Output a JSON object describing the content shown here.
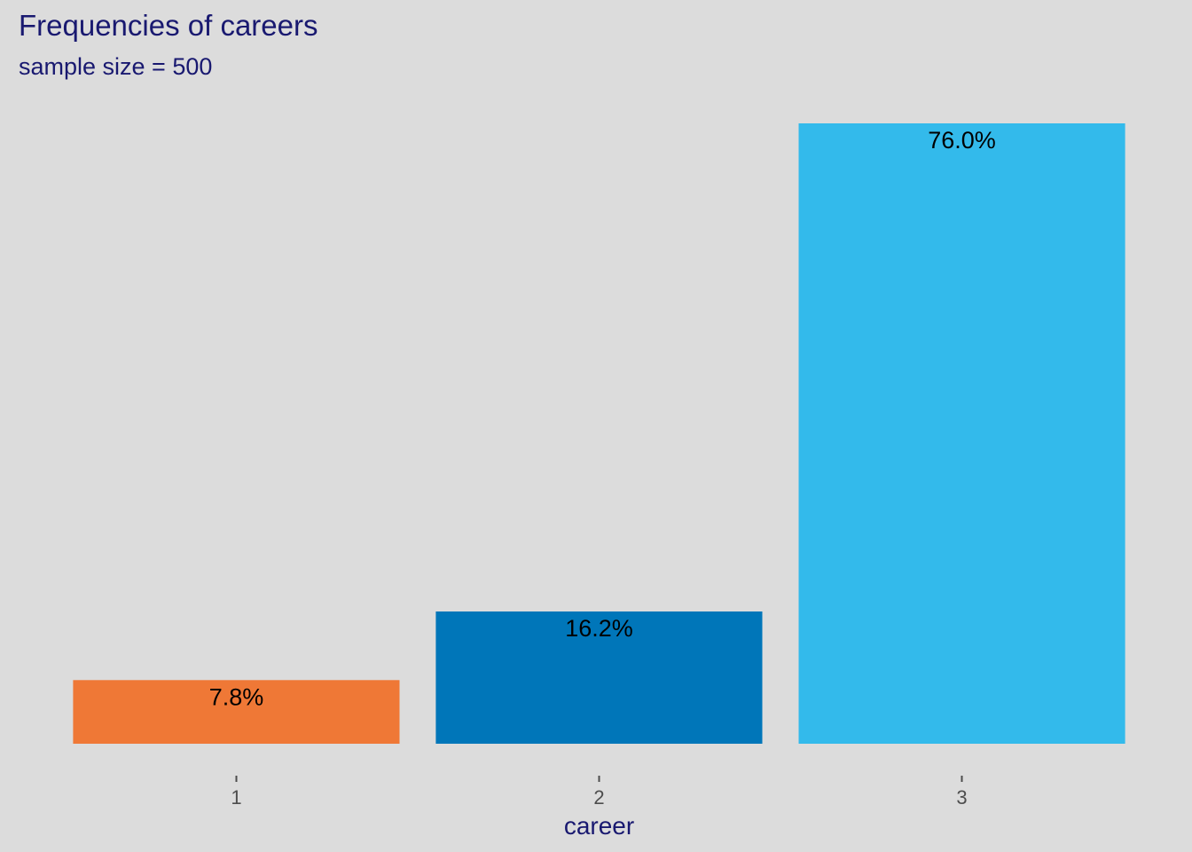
{
  "chart_data": {
    "type": "bar",
    "title": "Frequencies of careers",
    "subtitle": "sample size = 500",
    "xlabel": "career",
    "ylabel": "",
    "categories": [
      "1",
      "2",
      "3"
    ],
    "values": [
      7.8,
      16.2,
      76.0
    ],
    "value_labels": [
      "7.8%",
      "16.2%",
      "76.0%"
    ],
    "colors": [
      "#ef7836",
      "#0076b9",
      "#33baeb"
    ],
    "ylim": [
      0,
      76.0
    ],
    "grid": false,
    "legend": "none"
  },
  "theme": {
    "background": "#dcdcdc",
    "title_color": "#191970",
    "tick_color": "#4d4d4d"
  }
}
